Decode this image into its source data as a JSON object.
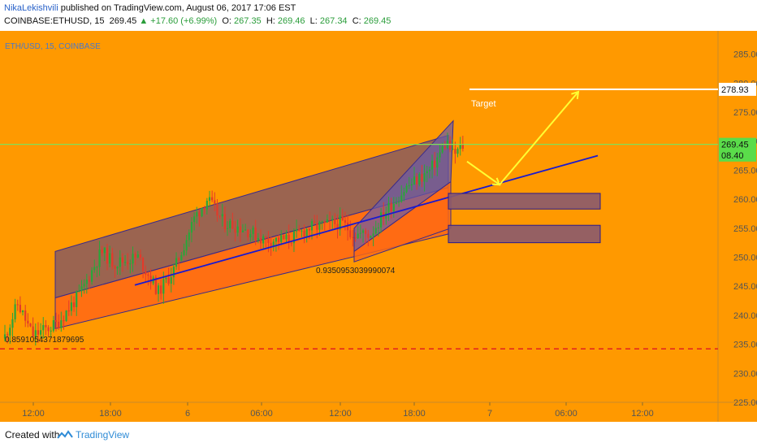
{
  "header": {
    "author": "NikaLekishvili",
    "published_text": " published on TradingView.com, August 06, 2017 17:06 EST",
    "symbol": "COINBASE:ETHUSD, 15",
    "price": "269.45",
    "change": "▲ +17.60 (+6.99%)",
    "o_label": "O:",
    "o_value": "267.35",
    "h_label": "H:",
    "h_value": "269.46",
    "l_label": "L:",
    "l_value": "267.34",
    "c_label": "C:",
    "c_value": "269.45"
  },
  "footer": {
    "created_with": "Created with",
    "brand": "TradingView"
  },
  "colors": {
    "background": "#ff9900",
    "up_candle": "#2aa63a",
    "down_candle": "#e23a2a",
    "channel_fill": "#8a5a5e",
    "channel_lower_fill": "#ff6a14",
    "trend_line": "#1a1ad0",
    "arrow": "#ffff33",
    "horizontal_line": "#7ee05a",
    "dashed_support": "#e02020",
    "target_line": "#ffffff",
    "box_fill": "#8a5a6e",
    "box_stroke": "#2a1a8a"
  },
  "chart_data": {
    "type": "candlestick",
    "instrument_label": "ETH/USD, 15, COINBASE",
    "ylim": [
      225,
      289
    ],
    "y_ticks": [
      "285.00",
      "280.00",
      "275.00",
      "270.00",
      "265.00",
      "260.00",
      "255.00",
      "250.00",
      "245.00",
      "240.00",
      "235.00",
      "230.00",
      "225.00"
    ],
    "x_ticks": [
      "12:00",
      "18:00",
      "6",
      "06:00",
      "12:00",
      "18:00",
      "7",
      "06:00",
      "12:00"
    ],
    "price_labels": [
      {
        "label": "278.93",
        "value": 278.93
      },
      {
        "label": "269.45",
        "value": 269.45
      },
      {
        "label": "08.40",
        "value": 267.6
      }
    ],
    "annotations": {
      "target": "Target",
      "fib_low": "0.8591054371879695",
      "fib_mid": "0.9350953039990074"
    },
    "levels": {
      "current": 269.45,
      "target": 278.93,
      "support": 234.2
    },
    "boxes": [
      {
        "top": 261.0,
        "bottom": 258.3
      },
      {
        "top": 255.5,
        "bottom": 252.5
      }
    ]
  }
}
